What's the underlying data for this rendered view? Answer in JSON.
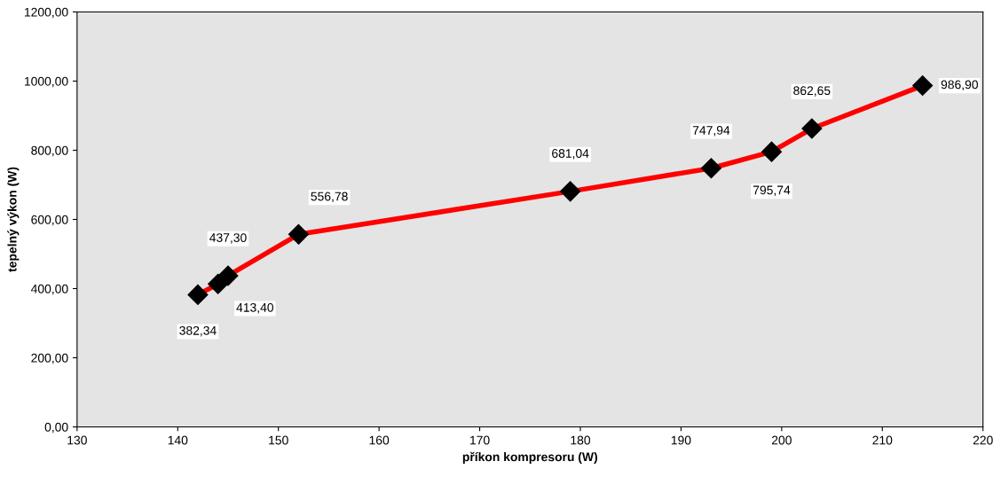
{
  "chart_data": {
    "type": "line",
    "xlabel": "příkon kompresoru (W)",
    "ylabel": "tepelný výkon (W)",
    "x": [
      142,
      144,
      145,
      152,
      179,
      193,
      199,
      203,
      214
    ],
    "series": [
      {
        "color": "#ff0000",
        "values": [
          382.34,
          413.4,
          437.3,
          556.78,
          681.04,
          747.94,
          795.74,
          862.65,
          986.9
        ],
        "value_labels": [
          "382,34",
          "413,40",
          "437,30",
          "556,78",
          "681,04",
          "747,94",
          "795,74",
          "862,65",
          "986,90"
        ]
      }
    ],
    "xlim": [
      130,
      220
    ],
    "xticks": [
      130,
      140,
      150,
      160,
      170,
      180,
      190,
      200,
      210,
      220
    ],
    "ylim": [
      0,
      1200
    ],
    "yticks": [
      {
        "value": 0,
        "label": "0,00"
      },
      {
        "value": 200,
        "label": "200,00"
      },
      {
        "value": 400,
        "label": "400,00"
      },
      {
        "value": 600,
        "label": "600,00"
      },
      {
        "value": 800,
        "label": "800,00"
      },
      {
        "value": 1000,
        "label": "1000,00"
      },
      {
        "value": 1200,
        "label": "1200,00"
      }
    ],
    "marker": "diamond",
    "line_style": "solid",
    "grid": false,
    "legend": false
  }
}
